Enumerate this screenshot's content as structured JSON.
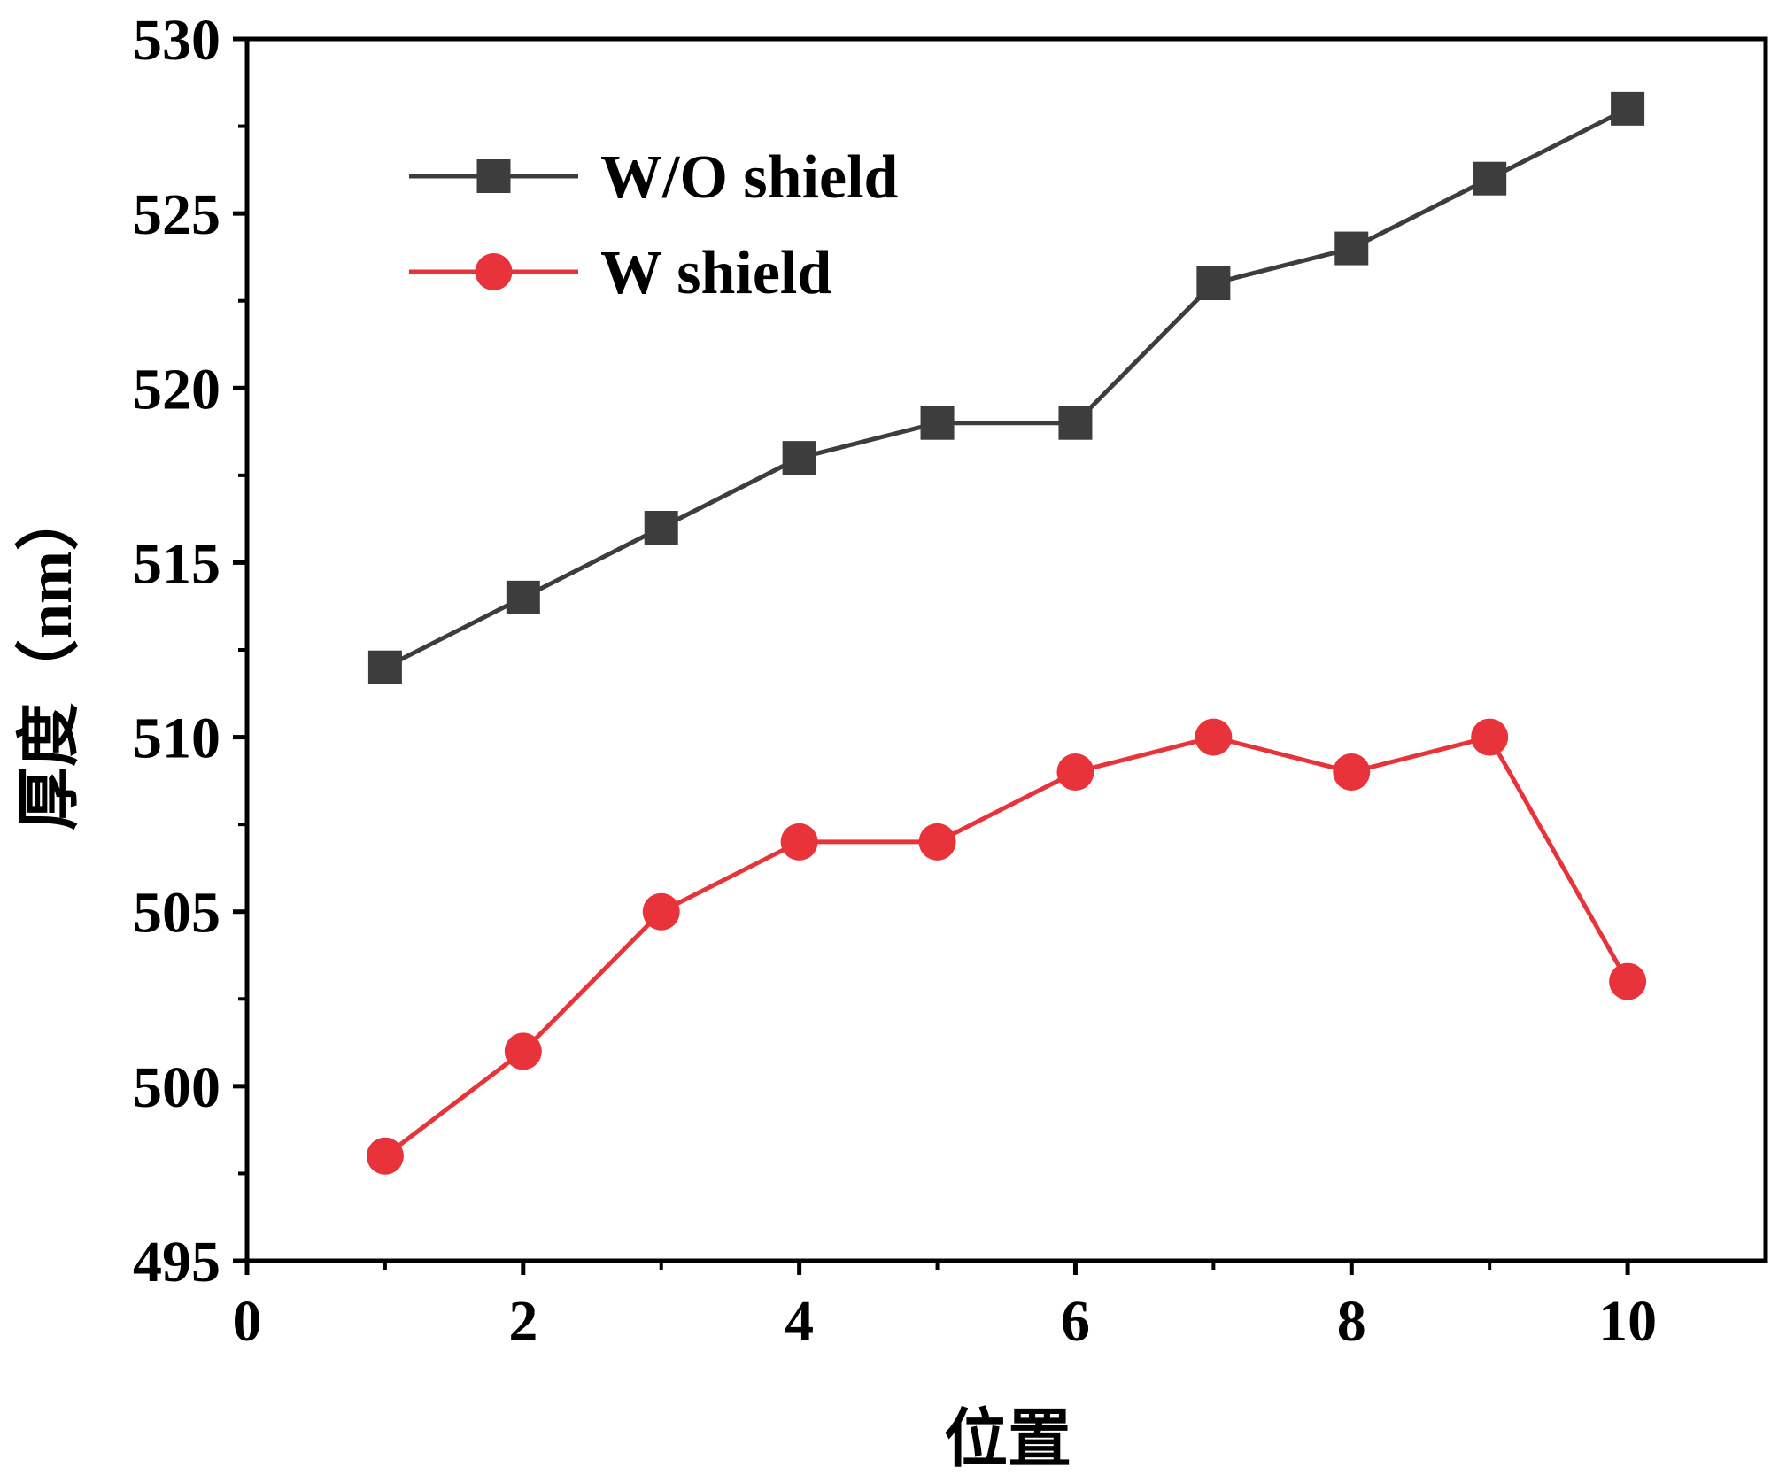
{
  "chart_data": {
    "type": "line",
    "title": "",
    "xlabel": "位置",
    "ylabel": "厚度（nm）",
    "xlim": [
      0,
      11
    ],
    "ylim": [
      495,
      530
    ],
    "x_ticks": [
      0,
      2,
      4,
      6,
      8,
      10
    ],
    "x_minor_ticks": [
      1,
      3,
      5,
      7,
      9
    ],
    "y_ticks": [
      495,
      500,
      505,
      510,
      515,
      520,
      525,
      530
    ],
    "y_minor_ticks": [
      497.5,
      502.5,
      507.5,
      512.5,
      517.5,
      522.5,
      527.5
    ],
    "legend_position": "top-left",
    "grid": false,
    "x": [
      1,
      2,
      3,
      4,
      5,
      6,
      7,
      8,
      9,
      10
    ],
    "series": [
      {
        "name": "W/O shield",
        "marker": "square",
        "color": "#3d3d3d",
        "values": [
          512,
          514,
          516,
          518,
          519,
          519,
          523,
          524,
          526,
          528
        ]
      },
      {
        "name": "W shield",
        "marker": "circle",
        "color": "#e8333a",
        "values": [
          498,
          501,
          505,
          507,
          507,
          509,
          510,
          509,
          510,
          503
        ]
      }
    ]
  }
}
